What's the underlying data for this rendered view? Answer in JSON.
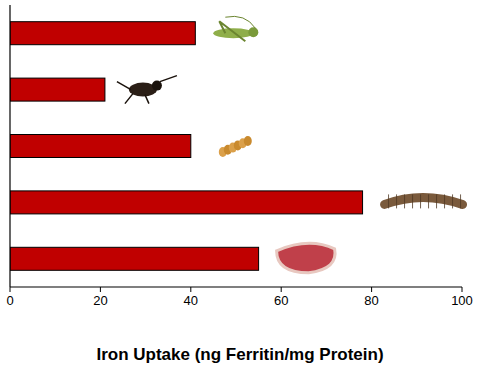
{
  "chart_data": {
    "type": "bar",
    "orientation": "horizontal",
    "x_label": "Iron Uptake (ng Ferritin/mg Protein)",
    "categories": [
      null,
      null,
      null,
      null,
      null
    ],
    "values": [
      41,
      21,
      40,
      78,
      55
    ],
    "color": "#c00000",
    "xlim": [
      0,
      100
    ],
    "xticks": [
      0,
      20,
      40,
      60,
      80,
      100
    ],
    "grid": false
  }
}
